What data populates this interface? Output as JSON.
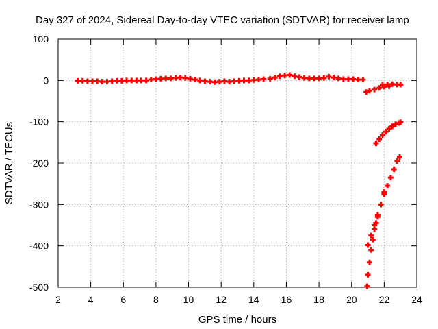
{
  "chart_data": {
    "type": "scatter",
    "title": "Day 327 of 2024, Sidereal Day-to-day VTEC variation (SDTVAR) for receiver lamp",
    "xlabel": "GPS time / hours",
    "ylabel": "SDTVAR / TECUs",
    "xlim": [
      2,
      24
    ],
    "ylim": [
      -500,
      100
    ],
    "xticks": [
      2,
      4,
      6,
      8,
      10,
      12,
      14,
      16,
      18,
      20,
      22,
      24
    ],
    "yticks": [
      100,
      0,
      -100,
      -200,
      -300,
      -400,
      -500
    ],
    "grid": true,
    "series": [
      {
        "name": "SDTVAR",
        "color": "#ff0000",
        "marker": "plus",
        "points": [
          [
            3.2,
            -1
          ],
          [
            3.5,
            -1
          ],
          [
            3.8,
            -2
          ],
          [
            4.1,
            -2
          ],
          [
            4.4,
            -2
          ],
          [
            4.7,
            -3
          ],
          [
            5.0,
            -3
          ],
          [
            5.3,
            -2
          ],
          [
            5.6,
            -1
          ],
          [
            5.9,
            -1
          ],
          [
            6.2,
            0
          ],
          [
            6.5,
            0
          ],
          [
            6.8,
            0
          ],
          [
            7.1,
            0
          ],
          [
            7.4,
            0
          ],
          [
            7.7,
            2
          ],
          [
            8.0,
            3
          ],
          [
            8.3,
            4
          ],
          [
            8.6,
            5
          ],
          [
            8.9,
            5
          ],
          [
            9.2,
            6
          ],
          [
            9.5,
            7
          ],
          [
            9.8,
            6
          ],
          [
            10.1,
            4
          ],
          [
            10.4,
            2
          ],
          [
            10.7,
            0
          ],
          [
            11.0,
            -2
          ],
          [
            11.3,
            -3
          ],
          [
            11.6,
            -4
          ],
          [
            11.9,
            -3
          ],
          [
            12.2,
            -2
          ],
          [
            12.5,
            -3
          ],
          [
            12.8,
            -2
          ],
          [
            13.1,
            -1
          ],
          [
            13.4,
            0
          ],
          [
            13.7,
            0
          ],
          [
            14.0,
            1
          ],
          [
            14.3,
            2
          ],
          [
            14.6,
            3
          ],
          [
            15.0,
            4
          ],
          [
            15.3,
            7
          ],
          [
            15.6,
            10
          ],
          [
            15.9,
            12
          ],
          [
            16.2,
            13
          ],
          [
            16.5,
            10
          ],
          [
            16.8,
            8
          ],
          [
            17.1,
            6
          ],
          [
            17.4,
            5
          ],
          [
            17.7,
            5
          ],
          [
            18.0,
            5
          ],
          [
            18.3,
            6
          ],
          [
            18.6,
            9
          ],
          [
            18.9,
            7
          ],
          [
            19.2,
            5
          ],
          [
            19.5,
            3
          ],
          [
            19.8,
            3
          ],
          [
            20.1,
            3
          ],
          [
            20.4,
            2
          ],
          [
            20.7,
            2
          ],
          [
            20.9,
            -28
          ],
          [
            21.1,
            -25
          ],
          [
            21.4,
            -22
          ],
          [
            21.7,
            -18
          ],
          [
            22.0,
            -15
          ],
          [
            22.3,
            -14
          ],
          [
            21.9,
            -10
          ],
          [
            22.2,
            -10
          ],
          [
            22.5,
            -9
          ],
          [
            22.8,
            -10
          ],
          [
            23.0,
            -10
          ],
          [
            21.5,
            -152
          ],
          [
            21.7,
            -142
          ],
          [
            21.9,
            -132
          ],
          [
            22.1,
            -124
          ],
          [
            22.3,
            -117
          ],
          [
            22.5,
            -111
          ],
          [
            22.7,
            -106
          ],
          [
            22.9,
            -103
          ],
          [
            23.0,
            -101
          ],
          [
            21.0,
            -398
          ],
          [
            21.2,
            -375
          ],
          [
            21.4,
            -350
          ],
          [
            21.6,
            -325
          ],
          [
            21.8,
            -300
          ],
          [
            22.0,
            -275
          ],
          [
            22.2,
            -255
          ],
          [
            22.4,
            -235
          ],
          [
            22.6,
            -215
          ],
          [
            22.8,
            -195
          ],
          [
            22.95,
            -185
          ],
          [
            20.95,
            -498
          ],
          [
            21.0,
            -470
          ],
          [
            21.1,
            -440
          ],
          [
            21.2,
            -410
          ],
          [
            21.3,
            -385
          ],
          [
            21.4,
            -360
          ],
          [
            21.5,
            -345
          ],
          [
            21.6,
            -330
          ],
          [
            21.8,
            -300
          ],
          [
            22.0,
            -270
          ]
        ]
      }
    ]
  }
}
